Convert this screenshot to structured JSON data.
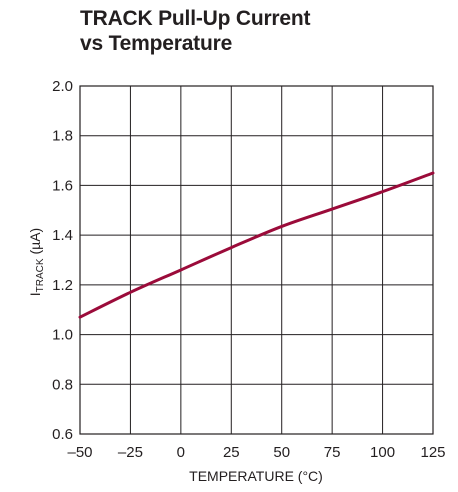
{
  "chart_data": {
    "type": "line",
    "title_line1": "TRACK Pull-Up Current",
    "title_line2": "vs Temperature",
    "xlabel": "TEMPERATURE (°C)",
    "ylabel_main": "I",
    "ylabel_sub": "TRACK",
    "ylabel_unit": " (µA)",
    "xlim": [
      -50,
      125
    ],
    "ylim": [
      0.6,
      2.0
    ],
    "x_ticks": [
      -50,
      -25,
      0,
      25,
      50,
      75,
      100,
      125
    ],
    "x_tick_labels": [
      "–50",
      "–25",
      "0",
      "25",
      "50",
      "75",
      "100",
      "125"
    ],
    "y_ticks": [
      0.6,
      0.8,
      1.0,
      1.2,
      1.4,
      1.6,
      1.8,
      2.0
    ],
    "y_tick_labels": [
      "0.6",
      "0.8",
      "1.0",
      "1.2",
      "1.4",
      "1.6",
      "1.8",
      "2.0"
    ],
    "grid": true,
    "line_color": "#9b0b3a",
    "series": [
      {
        "x": [
          -50,
          -25,
          0,
          25,
          50,
          75,
          100,
          125
        ],
        "y": [
          1.07,
          1.17,
          1.26,
          1.35,
          1.435,
          1.505,
          1.575,
          1.65
        ]
      }
    ]
  }
}
